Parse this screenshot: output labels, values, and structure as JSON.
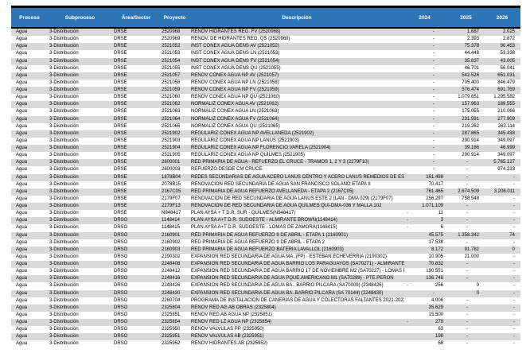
{
  "table": {
    "colors": {
      "header_bg": "#2E75B6",
      "header_text": "#FFFFFF",
      "stripe": "#D9D9D9",
      "top_bar": "#000000"
    },
    "columns": [
      "Proceso",
      "Subproceso",
      "Área/Sector",
      "Proyecto",
      "Descripción",
      "2024",
      "2025",
      "2026"
    ],
    "proceso_value": "Agua",
    "subproceso_value": "3-Distribución",
    "rows": [
      {
        "area": "DRSE",
        "proyecto": "2520968",
        "descripcion": "RENOV HIDRANTES REG. FV (2520968)",
        "y2024": "-",
        "y2025": "1.687",
        "y2026": "2.025"
      },
      {
        "area": "DRSE",
        "proyecto": "2520969",
        "descripcion": "RENOV. DE HIDRANTES REG. QS (2520969)",
        "y2024": "-",
        "y2025": "2.393",
        "y2026": "2.872"
      },
      {
        "area": "DRSE",
        "proyecto": "2521052",
        "descripcion": "INST CONEX AGUA DENS AV (2521052)",
        "y2024": "-",
        "y2025": "75.378",
        "y2026": "90.453"
      },
      {
        "area": "DRSE",
        "proyecto": "2521053",
        "descripcion": "INST CONEX AGUA DENS LN (2521053)",
        "y2024": "-",
        "y2025": "44.448",
        "y2026": "53.338"
      },
      {
        "area": "DRSE",
        "proyecto": "2521054",
        "descripcion": "INST CONEX AGUA DENS FV (2521054)",
        "y2024": "-",
        "y2025": "35.837",
        "y2026": "43.005"
      },
      {
        "area": "DRSE",
        "proyecto": "2521055",
        "descripcion": "INST CONEX AGUA DENS QU (2521055)",
        "y2024": "-",
        "y2025": "46.701",
        "y2026": "56.041"
      },
      {
        "area": "DRSE",
        "proyecto": "2521057",
        "descripcion": "RENOV CONEX AGUA NP AV (2521057)",
        "y2024": "-",
        "y2025": "542.526",
        "y2026": "651.031"
      },
      {
        "area": "DRSE",
        "proyecto": "2521058",
        "descripcion": "RENOV CONEX AGUA NP LN (2521058)",
        "y2024": "-",
        "y2025": "705.400",
        "y2026": "846.479"
      },
      {
        "area": "DRSE",
        "proyecto": "2521059",
        "descripcion": "RENOV CONEX AGUA NP FV (2521059)",
        "y2024": "-",
        "y2025": "576.474",
        "y2026": "691.769"
      },
      {
        "area": "DRSE",
        "proyecto": "2521060",
        "descripcion": "RENOV CONEX AGUA NP QU (2521060)",
        "y2024": "-",
        "y2025": "1.079.651",
        "y2026": "1.295.582"
      },
      {
        "area": "DRSE",
        "proyecto": "2521062",
        "descripcion": "NORMALIZ CONEX AGUA AV (2521062)",
        "y2024": "-",
        "y2025": "157.963",
        "y2026": "189.555"
      },
      {
        "area": "DRSE",
        "proyecto": "2521063",
        "descripcion": "NORMALIZ CONEX AGUA LN (2521063)",
        "y2024": "-",
        "y2025": "175.055",
        "y2026": "210.066"
      },
      {
        "area": "DRSE",
        "proyecto": "2521064",
        "descripcion": "NORMALIZ CONEX AGUA FV (2521064)",
        "y2024": "-",
        "y2025": "231.591",
        "y2026": "277.909"
      },
      {
        "area": "DRSE",
        "proyecto": "2521065",
        "descripcion": "NORMALIZ CONEX AGUA QU (2521065)",
        "y2024": "-",
        "y2025": "219.262",
        "y2026": "263.114"
      },
      {
        "area": "DRSE",
        "proyecto": "2521902",
        "descripcion": "REGULARIZ CONEX AGUA NP AVELLANEDA (2521902)",
        "y2024": "-",
        "y2025": "287.865",
        "y2026": "345.438"
      },
      {
        "area": "DRSE",
        "proyecto": "2521903",
        "descripcion": "REGULARIZ CONEX AGUA NP LANÚS (2521903)",
        "y2024": "-",
        "y2025": "290.914",
        "y2026": "349.097"
      },
      {
        "area": "DRSE",
        "proyecto": "2521904",
        "descripcion": "REGULARIZ CONEX AGUA NP FLORENCIO VARELA (2521904)",
        "y2024": "-",
        "y2025": "39.166",
        "y2026": "46.999"
      },
      {
        "area": "DRSE",
        "proyecto": "2521905",
        "descripcion": "REGULARIZ CONEX AGUA NP QUILMES (2521905)",
        "y2024": "-",
        "y2025": "290.914",
        "y2026": "349.097"
      },
      {
        "area": "DRSE",
        "proyecto": "2600001",
        "descripcion": "RED PRIMARIA DE AGUA - REFUERZO EL CRUCE - TRAMOS 1, 2 Y 3 (2279F10)",
        "y2024": "-",
        "y2025": "-",
        "y2026": "5.765.127"
      },
      {
        "area": "DRSE",
        "proyecto": "2600003",
        "descripcion": "REFUERZO DESDE CM CRUCE",
        "y2024": "-",
        "y2025": "-",
        "y2026": "974.233"
      },
      {
        "area": "DRSE",
        "proyecto": "1878B04",
        "descripcion": "REDES SECUNDARIAS DE AGUA ACERO LANÚS CENTRO Y ACERO LANÚS REMEDIOS DE ESCALA",
        "y2024": "161.498",
        "y2025": "-",
        "y2026": "-"
      },
      {
        "area": "DRSE",
        "proyecto": "2078B15",
        "descripcion": "RENOVACIÓN RED SECUNDARIA DE AGUA SAN FRANCISCO SOLANO ETAPA II",
        "y2024": "70.417",
        "y2025": "-",
        "y2026": "-"
      },
      {
        "area": "DRSE",
        "proyecto": "2167C05",
        "descripcion": "RED PRIMARIA DE AGUA REFUERZO AVELLANEDA - ETAPA 2 (2167C05)",
        "y2024": "761.465",
        "y2025": "2.674.509",
        "y2026": "3.208.011"
      },
      {
        "area": "DRSE",
        "proyecto": "2179F07",
        "descripcion": "RENOVACIÓN DE RED SECUNDARIA DE AGUA LANÚS ESTE 2 (LAN - DMA 029) (2179F07)",
        "y2024": "256.297",
        "y2025": "758.548",
        "y2026": "-"
      },
      {
        "area": "DRSE",
        "proyecto": "2279F13",
        "descripcion": "RENOVACION DE RED SECUNDARIA DE AGUA QUILMES QUI-DMA-036 Y MALLA 102",
        "y2024": "1.071.109",
        "y2025": "-",
        "y2026": "-"
      },
      {
        "area": "DRSE",
        "proyecto": "N948417",
        "descripcion": "PLAN AYSA + T D.R. SUR - QUILMES(N948417)",
        "y2024": "- 11",
        "y2025": "-",
        "y2026": "-"
      },
      {
        "area": "DRSO",
        "proyecto": "1148414",
        "descripcion": "PLAN AYSA A+T D.R. SUDOESTE - ALMIRANTE BROWN(1148414)",
        "y2024": "- 3",
        "y2025": "-",
        "y2026": "-"
      },
      {
        "area": "DRSO",
        "proyecto": "1148415",
        "descripcion": "PLAN AYSA A+T D.R. SUDOESTE - LOMAS DE ZAMORA(1148415)",
        "y2024": "- 6",
        "y2025": "-",
        "y2026": "-"
      },
      {
        "area": "DRSO",
        "proyecto": "2160901",
        "descripcion": "RED PRIMARIA DE AGUA REFUERZO 9 DE ABRIL - ETAPA 1 (2160901)",
        "y2024": "45.575",
        "y2025": "1.358.342",
        "y2026": "74"
      },
      {
        "area": "DRSO",
        "proyecto": "2160902",
        "descripcion": "RED PRIMARIA DE AGUA REFUERZO 9 DE ABRIL - ETAPA 2",
        "y2024": "17.538",
        "y2025": "-",
        "y2026": "-"
      },
      {
        "area": "DRSO",
        "proyecto": "2160903",
        "descripcion": "RED PRIMARIA DE AGUA REFUERZO BATERIA LAVALLOL (2160903)",
        "y2024": "8.172",
        "y2025": "91.782",
        "y2026": "0"
      },
      {
        "area": "DRSO",
        "proyecto": "2190302",
        "descripcion": "EXPANSIÓN RED SECUNDARIA DE AGUA MA..(FP) - ESTEBAN ECHEVERRIA (2190302)",
        "y2024": "10.905",
        "y2025": "21.000",
        "y2026": "-"
      },
      {
        "area": "DRSO",
        "proyecto": "2248408",
        "descripcion": "EXPANSIÓN RED SECUNDARIA DE AGUA BARRIO LOS PARAGUAYOS (SA70271) - ALMIRANTE BI -",
        "y2024": "70.832",
        "y2025": "-",
        "y2026": "-"
      },
      {
        "area": "DRSO",
        "proyecto": "2248412",
        "descripcion": "EXPANSION RED SECUNDARIA DE AGUA BARRIO 17 DE NOVIEMBRE M2 (SA70227) - LOMAS DI",
        "y2024": "190.551",
        "y2025": "-",
        "y2026": "-"
      },
      {
        "area": "DRSO",
        "proyecto": "2248416",
        "descripcion": "EXPANSIÓN RED SECUNDARIA DE AGUA PQUE.AMERICANO M1 (SA70299) - PTE.PERON",
        "y2024": "136.748",
        "y2025": "-",
        "y2026": "-"
      },
      {
        "area": "DRSO",
        "proyecto": "2248426",
        "descripcion": "EXPANSION RED SECUNDARIA DE AGUA BA.. BARRIO PILCARA (SA70009) (2248426)",
        "y2024": "- 256",
        "y2025": "0",
        "y2026": "-"
      },
      {
        "area": "DRSO",
        "proyecto": "2248430",
        "descripcion": "EXPANSION RED SECUNDARIA DE AGUA BA..BARRIO PILCARA (SA 70144) (2248430)",
        "y2024": "-",
        "y2025": "0",
        "y2026": "-"
      },
      {
        "area": "DRSO",
        "proyecto": "2260704",
        "descripcion": "PROGRAMA DE INSTALACIÓN DE CAÑERÍAS DE AGUA Y COLECTORAS FALTANTES 2021-2023 D",
        "y2024": "4.006",
        "y2025": "-",
        "y2026": "-"
      },
      {
        "area": "DRSO",
        "proyecto": "2325804",
        "descripcion": "RENOV RED AG AB OBRAS (2325804)",
        "y2024": "35.629",
        "y2025": "-",
        "y2026": "-"
      },
      {
        "area": "DRSO",
        "proyecto": "2325851",
        "descripcion": "RENOV RED AB AGUA NP (2325851)",
        "y2024": "15.500",
        "y2025": "-",
        "y2026": "-"
      },
      {
        "area": "DRSO",
        "proyecto": "2325854",
        "descripcion": "RENOV RED LZ AGUA NP (2325854)",
        "y2024": "- 279",
        "y2025": "-",
        "y2026": "-"
      },
      {
        "area": "DRSO",
        "proyecto": "2325950",
        "descripcion": "RENOV VALVULAS PP (2325950)",
        "y2024": "63",
        "y2025": "-",
        "y2026": "-"
      },
      {
        "area": "DRSO",
        "proyecto": "2325951",
        "descripcion": "RENOV VALVULAS AB (2325951)",
        "y2024": "198",
        "y2025": "-",
        "y2026": "-"
      },
      {
        "area": "DRSO",
        "proyecto": "2325952",
        "descripcion": "RENOV HIDRANTES AB (2325952)",
        "y2024": "68",
        "y2025": "-",
        "y2026": "-"
      }
    ]
  }
}
